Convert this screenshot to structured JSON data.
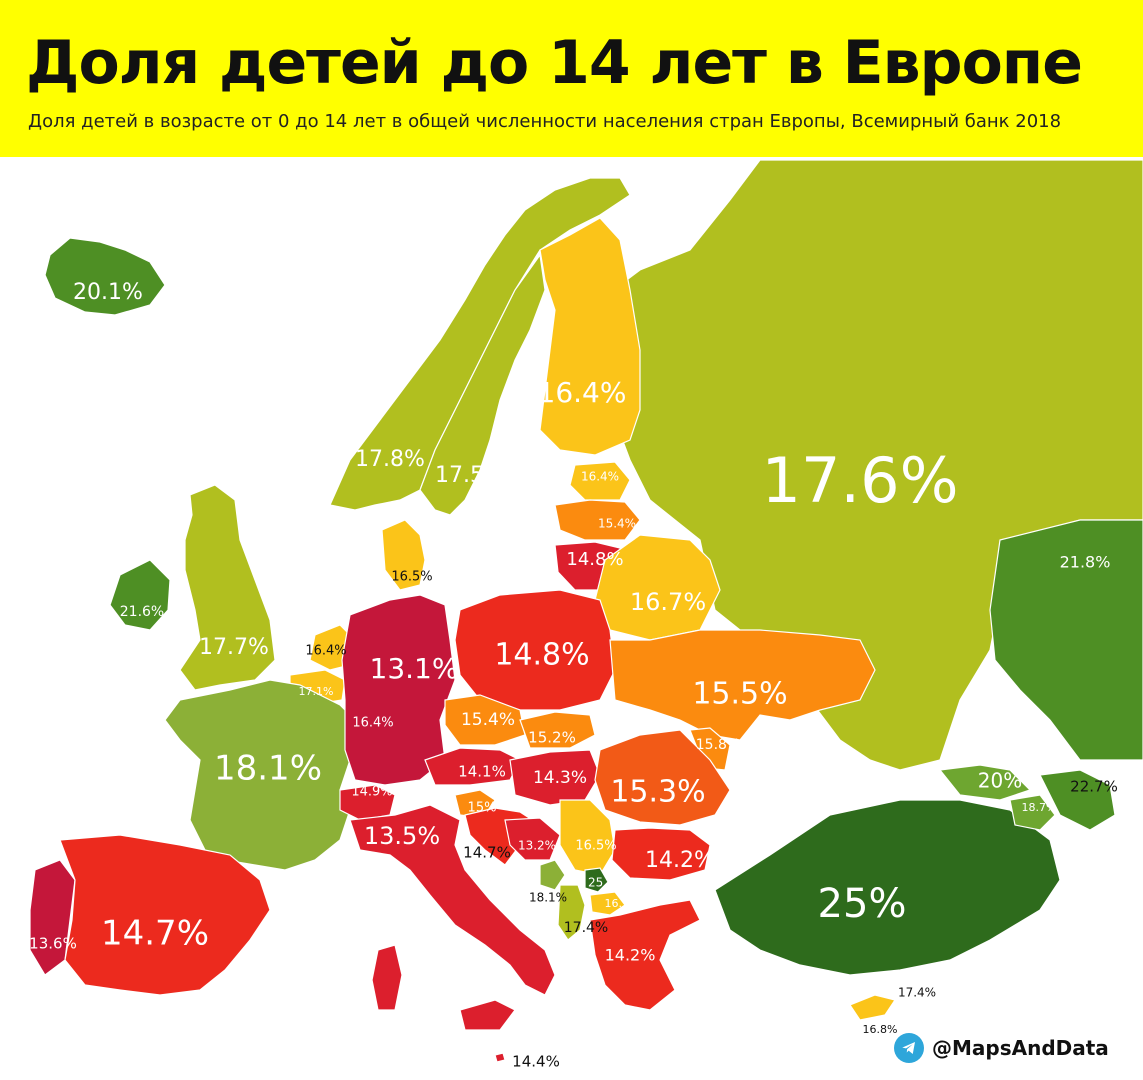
{
  "title": "Доля детей до 14 лет в Европе",
  "subtitle": "Доля детей в возрасте от 0 до 14 лет в общей численности населения стран Европы, Всемирный банк 2018",
  "credit": "@MapsAndData",
  "icons": {
    "credit": "telegram-icon"
  },
  "colors": {
    "header_bg": "#ffff00",
    "band_25": "#2e6b1c",
    "band_21_23": "#4e8f24",
    "band_20": "#6ea630",
    "band_18": "#8cb037",
    "band_17_5": "#b1bf1f",
    "band_16_5": "#fbc419",
    "band_16": "#fdb515",
    "band_15_5": "#fb8b0f",
    "band_15": "#f25a17",
    "band_14_5": "#ec2a1e",
    "band_14": "#dc1f2d",
    "band_13": "#c4173a"
  },
  "countries": [
    {
      "id": "iceland",
      "value": "20.1%"
    },
    {
      "id": "norway",
      "value": "17.8%"
    },
    {
      "id": "sweden",
      "value": "17.5%"
    },
    {
      "id": "finland",
      "value": "16.4%"
    },
    {
      "id": "estonia",
      "value": "16.4%"
    },
    {
      "id": "latvia",
      "value": "15.4%"
    },
    {
      "id": "lithuania",
      "value": "14.8%"
    },
    {
      "id": "russia",
      "value": "17.6%"
    },
    {
      "id": "kazakhstan",
      "value": "21.8%"
    },
    {
      "id": "belarus",
      "value": "16.7%"
    },
    {
      "id": "denmark",
      "value": "16.5%"
    },
    {
      "id": "ireland",
      "value": "21.6%"
    },
    {
      "id": "uk",
      "value": "17.7%"
    },
    {
      "id": "netherlands",
      "value": "16.4%"
    },
    {
      "id": "belgium",
      "value": "17.1%"
    },
    {
      "id": "luxembourg",
      "value": "16.4%"
    },
    {
      "id": "germany",
      "value": "13.1%"
    },
    {
      "id": "poland",
      "value": "14.8%"
    },
    {
      "id": "ukraine",
      "value": "15.5%"
    },
    {
      "id": "moldova",
      "value": "15.8%"
    },
    {
      "id": "czechia",
      "value": "15.4%"
    },
    {
      "id": "slovakia",
      "value": "15.2%"
    },
    {
      "id": "austria",
      "value": "14.1%"
    },
    {
      "id": "hungary",
      "value": "14.3%"
    },
    {
      "id": "romania",
      "value": "15.3%"
    },
    {
      "id": "france",
      "value": "18.1%"
    },
    {
      "id": "switzerland",
      "value": "14.9%"
    },
    {
      "id": "slovenia",
      "value": "15%"
    },
    {
      "id": "croatia",
      "value": "14.7%"
    },
    {
      "id": "bosnia",
      "value": "13.2%"
    },
    {
      "id": "serbia",
      "value": "16.5%"
    },
    {
      "id": "bulgaria",
      "value": "14.2%"
    },
    {
      "id": "italy",
      "value": "13.5%"
    },
    {
      "id": "montenegro",
      "value": "18.1%"
    },
    {
      "id": "kosovo",
      "value": "25.8%"
    },
    {
      "id": "north-macedonia",
      "value": "16.7%"
    },
    {
      "id": "albania",
      "value": "17.4%"
    },
    {
      "id": "greece",
      "value": "14.2%"
    },
    {
      "id": "portugal",
      "value": "13.6%"
    },
    {
      "id": "spain",
      "value": "14.7%"
    },
    {
      "id": "turkey",
      "value": "25%"
    },
    {
      "id": "georgia",
      "value": "20%"
    },
    {
      "id": "armenia",
      "value": "18.7%"
    },
    {
      "id": "azerbaijan",
      "value": "22.7%"
    },
    {
      "id": "cyprus-north",
      "value": "17.4%"
    },
    {
      "id": "cyprus",
      "value": "16.8%"
    },
    {
      "id": "malta",
      "value": "14.4%"
    }
  ]
}
